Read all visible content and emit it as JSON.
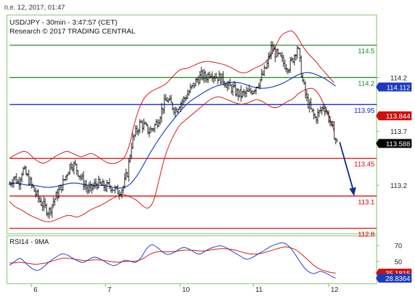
{
  "timestamp": "п.е. 12, 2017, 01:47",
  "colors": {
    "frame_green": "#7fbf5f",
    "candles": "#000000",
    "bollinger": "#d01010",
    "ma": "#1a3bc0",
    "support": "#dd0000",
    "resistance": "#1f8a1f",
    "pivot": "#1020c0",
    "arrow": "#13338a",
    "rsi": "#1a3bc0",
    "rsi_ma": "#cc1010"
  },
  "chart_data": [
    {
      "type": "candlestick",
      "title": "USD/JPY - 30min - 3:47:57 (CET)",
      "subtitle": "Research © 2017 TRADING CENTRAL",
      "x_tick_labels": [
        "6",
        "7",
        "10",
        "11",
        "12"
      ],
      "y_tick_labels": [
        "114.2",
        "113.7",
        "113.2"
      ],
      "ylim": [
        112.75,
        114.78
      ],
      "grid": false,
      "price_path": [
        113.21,
        113.28,
        113.22,
        113.35,
        113.28,
        113.2,
        113.12,
        113.05,
        113.0,
        112.95,
        113.05,
        113.12,
        113.2,
        113.3,
        113.4,
        113.38,
        113.3,
        113.22,
        113.15,
        113.18,
        113.22,
        113.2,
        113.18,
        113.2,
        113.16,
        113.14,
        113.18,
        113.32,
        113.6,
        113.7,
        113.78,
        113.74,
        113.7,
        113.74,
        113.8,
        113.92,
        114.0,
        113.95,
        113.9,
        113.96,
        114.0,
        114.06,
        114.12,
        114.18,
        114.22,
        114.2,
        114.25,
        114.22,
        114.2,
        114.18,
        114.12,
        114.1,
        114.06,
        114.04,
        114.05,
        114.06,
        114.1,
        114.15,
        114.22,
        114.32,
        114.48,
        114.42,
        114.38,
        114.32,
        114.3,
        114.38,
        114.5,
        114.2,
        114.0,
        113.9,
        113.82,
        113.88,
        113.94,
        113.84,
        113.72,
        113.59
      ],
      "bollinger_upper": [
        113.45,
        113.48,
        113.5,
        113.52,
        113.5,
        113.45,
        113.42,
        113.4,
        113.42,
        113.45,
        113.48,
        113.5,
        113.52,
        113.5,
        113.48,
        113.46,
        113.48,
        113.5,
        113.48,
        113.45,
        113.42,
        113.4,
        113.4,
        113.42,
        113.45,
        113.55,
        113.75,
        113.9,
        114.0,
        114.05,
        114.08,
        114.1,
        114.12,
        114.15,
        114.2,
        114.25,
        114.28,
        114.28,
        114.3,
        114.32,
        114.34,
        114.35,
        114.35,
        114.34,
        114.33,
        114.32,
        114.3,
        114.28,
        114.25,
        114.24,
        114.25,
        114.28,
        114.3,
        114.32,
        114.36,
        114.42,
        114.52,
        114.6,
        114.62,
        114.64,
        114.6,
        114.52,
        114.45,
        114.4,
        114.36,
        114.3,
        114.25,
        114.2,
        114.15
      ],
      "bollinger_lower": [
        113.05,
        113.0,
        112.98,
        112.95,
        112.92,
        112.9,
        112.88,
        112.86,
        112.86,
        112.88,
        112.9,
        112.92,
        112.92,
        112.9,
        112.92,
        112.95,
        112.98,
        113.0,
        113.02,
        113.05,
        113.08,
        113.1,
        113.12,
        113.1,
        113.08,
        113.05,
        113.0,
        112.98,
        113.05,
        113.25,
        113.45,
        113.58,
        113.68,
        113.76,
        113.8,
        113.84,
        113.88,
        113.92,
        113.96,
        114.0,
        114.02,
        114.02,
        114.0,
        113.98,
        113.96,
        113.95,
        113.96,
        113.98,
        114.0,
        113.98,
        113.95,
        113.92,
        113.92,
        113.95,
        113.98,
        114.0,
        114.05,
        114.08,
        114.1,
        114.1,
        114.05,
        113.95,
        113.85,
        113.7
      ],
      "moving_average": [
        113.22,
        113.22,
        113.2,
        113.2,
        113.18,
        113.18,
        113.2,
        113.22,
        113.22,
        113.2,
        113.2,
        113.2,
        113.18,
        113.17,
        113.2,
        113.3,
        113.45,
        113.58,
        113.7,
        113.8,
        113.9,
        113.98,
        114.03,
        114.08,
        114.12,
        114.14,
        114.16,
        114.15,
        114.12,
        114.1,
        114.1,
        114.12,
        114.15,
        114.2,
        114.24,
        114.25,
        114.22,
        114.18,
        114.12
      ],
      "levels": [
        {
          "label": "114.5",
          "value": 114.5,
          "kind": "resistance"
        },
        {
          "label": "114.2",
          "value": 114.2,
          "kind": "resistance"
        },
        {
          "label": "113.95",
          "value": 113.95,
          "kind": "pivot"
        },
        {
          "label": "113.45",
          "value": 113.45,
          "kind": "support"
        },
        {
          "label": "113.1",
          "value": 113.1,
          "kind": "support"
        },
        {
          "label": "112.8",
          "value": 112.8,
          "kind": "support"
        }
      ],
      "price_tags": [
        {
          "label": "114.112",
          "value": 114.112,
          "kind": "ma"
        },
        {
          "label": "113.844",
          "value": 113.844,
          "kind": "bollinger"
        },
        {
          "label": "113.588",
          "value": 113.588,
          "kind": "last"
        }
      ],
      "forecast_arrow": {
        "from": 113.6,
        "to": 113.1
      }
    },
    {
      "type": "line",
      "title": "RSI14 - 9MA",
      "y_tick_labels": [
        "70",
        "50",
        "30"
      ],
      "ylim": [
        22,
        82
      ],
      "rsi": [
        45,
        50,
        55,
        48,
        42,
        38,
        40,
        46,
        52,
        56,
        60,
        58,
        54,
        50,
        48,
        52,
        56,
        54,
        50,
        46,
        44,
        48,
        52,
        50,
        48,
        54,
        66,
        72,
        68,
        62,
        58,
        60,
        64,
        68,
        66,
        62,
        58,
        62,
        66,
        68,
        70,
        68,
        64,
        60,
        56,
        52,
        54,
        58,
        62,
        66,
        70,
        72,
        74,
        70,
        62,
        52,
        42,
        36,
        34,
        38,
        36,
        32,
        28.8
      ],
      "rsi_ma": [
        48,
        48,
        49,
        48,
        47,
        46,
        47,
        48,
        50,
        52,
        54,
        54,
        53,
        52,
        51,
        51,
        52,
        52,
        51,
        50,
        49,
        49,
        50,
        50,
        50,
        52,
        56,
        60,
        62,
        62,
        62,
        62,
        63,
        64,
        64,
        64,
        63,
        63,
        64,
        65,
        66,
        66,
        65,
        64,
        62,
        60,
        59,
        59,
        60,
        62,
        64,
        66,
        68,
        68,
        66,
        62,
        56,
        50,
        44,
        40,
        38,
        36,
        35.2
      ],
      "price_tags": [
        {
          "label": "35.1815",
          "value": 35.1815,
          "kind": "rsi_ma"
        },
        {
          "label": "28.8364",
          "value": 28.8364,
          "kind": "rsi"
        }
      ]
    }
  ]
}
